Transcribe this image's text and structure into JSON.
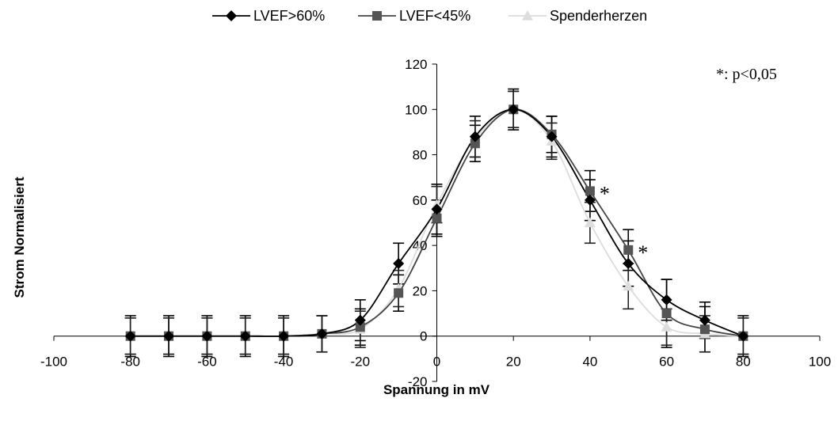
{
  "chart_data": {
    "type": "line",
    "xlabel": "Spannung in mV",
    "ylabel": "Strom Normalisiert",
    "xlim": [
      -100,
      100
    ],
    "ylim": [
      -20,
      120
    ],
    "xticks": [
      -100,
      -80,
      -60,
      -40,
      -20,
      0,
      20,
      40,
      60,
      80,
      100
    ],
    "yticks": [
      -20,
      0,
      20,
      40,
      60,
      80,
      100,
      120
    ],
    "annotation": "*: p<0,05",
    "significance_marker": "*",
    "significant_x": [
      40,
      50
    ],
    "legend_position": "top",
    "series": [
      {
        "name": "LVEF>60%",
        "marker": "diamond",
        "color": "#000000",
        "x": [
          -80,
          -70,
          -60,
          -50,
          -40,
          -30,
          -20,
          -10,
          0,
          10,
          20,
          30,
          40,
          50,
          60,
          70,
          80
        ],
        "y": [
          0,
          0,
          0,
          0,
          0,
          1,
          7,
          32,
          56,
          88,
          100,
          88,
          60,
          32,
          16,
          7,
          0
        ],
        "err": [
          9,
          9,
          9,
          9,
          9,
          8,
          9,
          9,
          11,
          9,
          9,
          9,
          9,
          10,
          9,
          8,
          9
        ]
      },
      {
        "name": "LVEF<45%",
        "marker": "square",
        "color": "#555555",
        "x": [
          -80,
          -70,
          -60,
          -50,
          -40,
          -30,
          -20,
          -10,
          0,
          10,
          20,
          30,
          40,
          50,
          60,
          70,
          80
        ],
        "y": [
          0,
          0,
          0,
          0,
          0,
          1,
          4,
          19,
          52,
          85,
          100,
          89,
          64,
          38,
          10,
          3,
          0
        ],
        "err": [
          8,
          8,
          8,
          8,
          8,
          8,
          8,
          8,
          8,
          8,
          8,
          8,
          9,
          9,
          15,
          10,
          8
        ]
      },
      {
        "name": "Spenderherzen",
        "marker": "triangle",
        "color": "#dddddd",
        "x": [
          -80,
          -70,
          -60,
          -50,
          -40,
          -30,
          -20,
          -10,
          0,
          10,
          20,
          30,
          40,
          50,
          60,
          70,
          80
        ],
        "y": [
          0,
          0,
          0,
          0,
          0,
          1,
          3,
          21,
          58,
          87,
          100,
          86,
          50,
          22,
          4,
          1,
          0
        ],
        "err": [
          8,
          8,
          8,
          8,
          8,
          8,
          8,
          8,
          8,
          8,
          8,
          8,
          9,
          10,
          8,
          8,
          8
        ]
      }
    ]
  }
}
